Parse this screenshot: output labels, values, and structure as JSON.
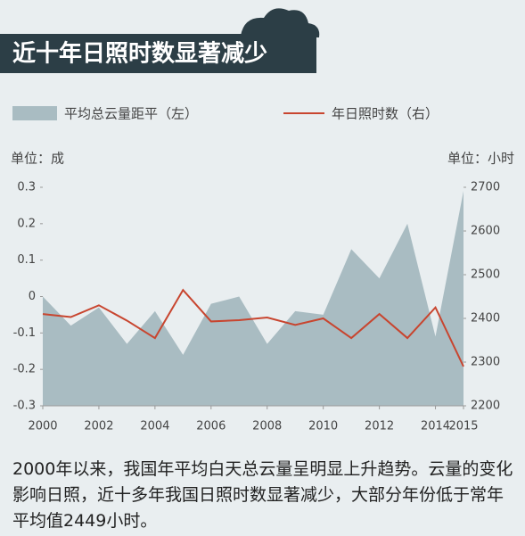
{
  "chart_data": {
    "type": "area_line",
    "title": "近十年日照时数显著减少",
    "ylabel": "单位：成",
    "y2label": "单位：小时",
    "x": [
      2000,
      2001,
      2002,
      2003,
      2004,
      2005,
      2006,
      2007,
      2008,
      2009,
      2010,
      2011,
      2012,
      2013,
      2014,
      2015
    ],
    "xlim": [
      2000,
      2015
    ],
    "xticks": [
      2000,
      2002,
      2004,
      2006,
      2008,
      2010,
      2012,
      2014,
      2015
    ],
    "ylim": [
      -0.3,
      0.3
    ],
    "yticks": [
      0.3,
      0.2,
      0.1,
      0,
      -0.1,
      -0.2,
      -0.3
    ],
    "y2lim": [
      2200,
      2700
    ],
    "y2ticks": [
      2700,
      2600,
      2500,
      2400,
      2300,
      2200
    ],
    "series": [
      {
        "name": "平均总云量距平（左）",
        "type": "area",
        "color": "#a9bcc2",
        "values": [
          0.0,
          -0.08,
          -0.03,
          -0.13,
          -0.04,
          -0.16,
          -0.02,
          0.0,
          -0.13,
          -0.04,
          -0.05,
          0.13,
          0.05,
          0.2,
          -0.11,
          0.29
        ]
      },
      {
        "name": "年日照时数（右）",
        "type": "line",
        "axis": "y2",
        "color": "#c8452f",
        "values": [
          2410,
          2403,
          2430,
          2395,
          2355,
          2465,
          2393,
          2396,
          2402,
          2385,
          2400,
          2355,
          2410,
          2355,
          2425,
          2290
        ]
      }
    ],
    "caption": "2000年以来，我国年平均白天总云量呈明显上升趋势。云量的变化影响日照，近十多年我国日照时数显著减少，大部分年份低于常年平均值2449小时。"
  }
}
